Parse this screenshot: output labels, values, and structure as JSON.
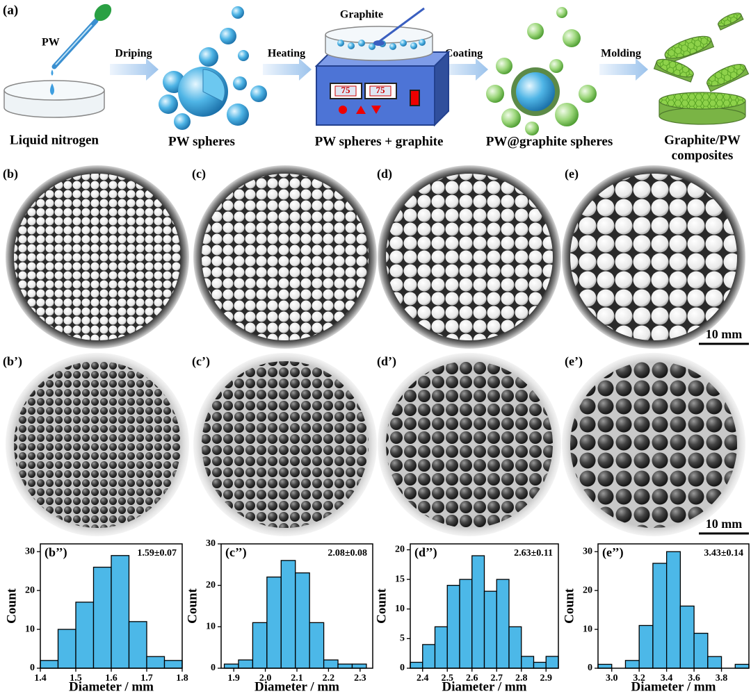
{
  "schematic": {
    "panel": "(a)",
    "pw": "PW",
    "steps": [
      "Driping",
      "Heating",
      "Coating",
      "Molding"
    ],
    "graphite": "Graphite",
    "display": [
      "75",
      "75"
    ],
    "stages": [
      "Liquid nitrogen",
      "PW spheres",
      "PW spheres + graphite",
      "PW@graphite spheres"
    ],
    "final": [
      "Graphite/PW",
      "composites"
    ]
  },
  "photos": {
    "white_labels": [
      "(b)",
      "(c)",
      "(d)",
      "(e)"
    ],
    "black_labels": [
      "(b’)",
      "(c’)",
      "(d’)",
      "(e’)"
    ],
    "scale_bars": [
      "10 mm",
      "10 mm"
    ]
  },
  "chart_data": [
    {
      "type": "histogram",
      "label": "(b’’)",
      "annotation": "1.59±0.07",
      "color": "#4cb8e8",
      "bins": [
        1.4,
        1.45,
        1.5,
        1.55,
        1.6,
        1.65,
        1.7,
        1.75,
        1.8
      ],
      "values": [
        2,
        10,
        17,
        26,
        29,
        12,
        3,
        2
      ],
      "xlim": [
        1.4,
        1.8
      ],
      "xticks": [
        1.4,
        1.5,
        1.6,
        1.7,
        1.8
      ],
      "ylim": [
        0,
        32
      ],
      "yticks": [
        0,
        10,
        20,
        30
      ],
      "x_label": "Diameter / mm",
      "y_label": "Count"
    },
    {
      "type": "histogram",
      "label": "(c’’)",
      "annotation": "2.08±0.08",
      "color": "#4cb8e8",
      "bins": [
        1.87,
        1.915,
        1.96,
        2.005,
        2.05,
        2.095,
        2.14,
        2.185,
        2.23,
        2.275,
        2.32
      ],
      "values": [
        1,
        2,
        11,
        22,
        26,
        23,
        11,
        2,
        1,
        1
      ],
      "xlim": [
        1.86,
        2.34
      ],
      "xticks": [
        1.9,
        {
          "value": 2,
          "label": "2.0"
        },
        2.1,
        2.2,
        2.3
      ],
      "ylim": [
        0,
        30
      ],
      "yticks": [
        0,
        10,
        20,
        30
      ],
      "x_label": "Diameter / mm",
      "y_label": "Count"
    },
    {
      "type": "histogram",
      "label": "(d’’)",
      "annotation": "2.63±0.11",
      "color": "#4cb8e8",
      "bins": [
        2.35,
        2.4,
        2.45,
        2.5,
        2.55,
        2.6,
        2.65,
        2.7,
        2.75,
        2.8,
        2.85,
        2.9,
        2.95
      ],
      "values": [
        1,
        4,
        7,
        14,
        15,
        19,
        13,
        15,
        7,
        2,
        1,
        2
      ],
      "xlim": [
        2.35,
        2.95
      ],
      "xticks": [
        2.4,
        2.5,
        2.6,
        2.7,
        2.8,
        2.9
      ],
      "ylim": [
        0,
        21
      ],
      "yticks": [
        0,
        5,
        10,
        15,
        20
      ],
      "x_label": "Diameter / mm",
      "y_label": "Count"
    },
    {
      "type": "histogram",
      "label": "(e’’)",
      "annotation": "3.43±0.14",
      "color": "#4cb8e8",
      "bins": [
        2.9,
        3.0,
        3.1,
        3.2,
        3.3,
        3.4,
        3.5,
        3.6,
        3.7,
        3.8,
        3.9,
        4.0
      ],
      "values": [
        1,
        0,
        2,
        11,
        27,
        30,
        16,
        9,
        3,
        0,
        1
      ],
      "xlim": [
        2.9,
        4.0
      ],
      "xticks": [
        {
          "value": 3,
          "label": "3.0"
        },
        3.2,
        3.4,
        3.6,
        3.8
      ],
      "ylim": [
        0,
        32
      ],
      "yticks": [
        0,
        10,
        20,
        30
      ],
      "x_label": "Diameter / mm",
      "y_label": "Count"
    }
  ]
}
